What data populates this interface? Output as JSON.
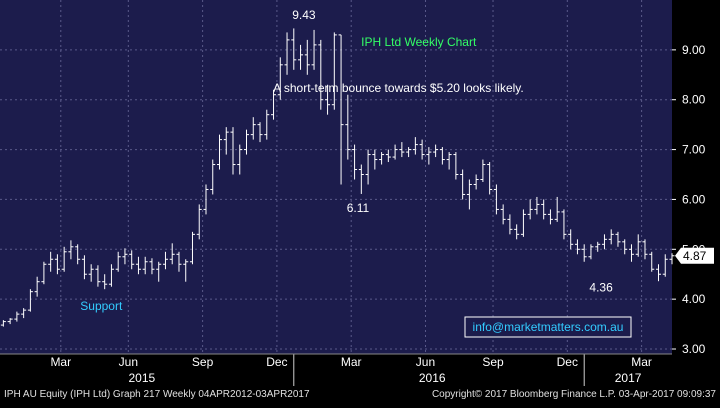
{
  "footer": {
    "left": "IPH AU Equity (IPH Ltd) Graph 217  Weekly 04APR2012-03APR2017",
    "right": "Copyright© 2017 Bloomberg Finance L.P.        03-Apr-2017 09:09:37"
  },
  "colors": {
    "plot_bg": "#1c1c4c",
    "grid": "#5a5a8a",
    "bar": "#ffffff",
    "annotation_green": "#33ff66",
    "annotation_white": "#ffffff",
    "support_cyan": "#33ccff",
    "axis_text": "#ffffff",
    "price_tag_bg": "#ffffff",
    "price_tag_text": "#000000"
  },
  "chart_data": {
    "type": "ohlc",
    "title": "IPH Ltd Weekly Chart",
    "annotations": [
      {
        "text": "IPH Ltd Weekly Chart",
        "color": "green",
        "at_week": 62,
        "at_price": 9.08
      },
      {
        "text": "A short-term bounce towards $5.20 looks likely.",
        "color": "white",
        "at_week": 59,
        "at_price": 8.15
      },
      {
        "text": "9.43",
        "color": "white",
        "at_week": 45,
        "at_price": 9.62
      },
      {
        "text": "6.11",
        "color": "white",
        "at_week": 53,
        "at_price": 5.75
      },
      {
        "text": "4.36",
        "color": "white",
        "at_week": 89,
        "at_price": 4.15
      },
      {
        "text": "Support",
        "color": "cyan",
        "at_week": 15,
        "at_price": 3.78
      }
    ],
    "contact_box": "info@marketmatters.com.au",
    "last_price_label": "4.87",
    "ylim": [
      2.9,
      10.0
    ],
    "xlim": [
      0,
      99.5
    ],
    "y_ticks": [
      {
        "value": 3.0,
        "label": "3.00"
      },
      {
        "value": 4.0,
        "label": "4.00"
      },
      {
        "value": 5.0,
        "label": "5.00"
      },
      {
        "value": 6.0,
        "label": "6.00"
      },
      {
        "value": 7.0,
        "label": "7.00"
      },
      {
        "value": 8.0,
        "label": "8.00"
      },
      {
        "value": 9.0,
        "label": "9.00"
      }
    ],
    "x_month_ticks": [
      {
        "label": "Mar",
        "at_week": 9
      },
      {
        "label": "Jun",
        "at_week": 19
      },
      {
        "label": "Sep",
        "at_week": 30
      },
      {
        "label": "Dec",
        "at_week": 41
      },
      {
        "label": "Mar",
        "at_week": 52
      },
      {
        "label": "Jun",
        "at_week": 63
      },
      {
        "label": "Sep",
        "at_week": 73
      },
      {
        "label": "Dec",
        "at_week": 84
      },
      {
        "label": "Mar",
        "at_week": 95
      }
    ],
    "x_year_labels": [
      {
        "label": "2015",
        "at_week": 21
      },
      {
        "label": "2016",
        "at_week": 64
      },
      {
        "label": "2017",
        "at_week": 93
      }
    ],
    "x_year_dividers_at_week": [
      43.5,
      86.5
    ],
    "grid": true,
    "series": [
      {
        "ohlc": [
          [
            3.48,
            3.58,
            3.45,
            3.55
          ],
          [
            3.55,
            3.62,
            3.5,
            3.6
          ],
          [
            3.6,
            3.75,
            3.55,
            3.7
          ],
          [
            3.7,
            3.82,
            3.62,
            3.78
          ],
          [
            3.78,
            4.2,
            3.75,
            4.15
          ],
          [
            4.15,
            4.45,
            4.05,
            4.35
          ],
          [
            4.35,
            4.75,
            4.3,
            4.7
          ],
          [
            4.7,
            4.95,
            4.55,
            4.8
          ],
          [
            4.8,
            4.9,
            4.5,
            4.6
          ],
          [
            4.6,
            5.05,
            4.55,
            4.95
          ],
          [
            4.95,
            5.18,
            4.8,
            5.05
          ],
          [
            5.05,
            5.1,
            4.7,
            4.8
          ],
          [
            4.8,
            4.88,
            4.4,
            4.5
          ],
          [
            4.5,
            4.7,
            4.35,
            4.6
          ],
          [
            4.6,
            4.68,
            4.25,
            4.35
          ],
          [
            4.35,
            4.5,
            4.2,
            4.3
          ],
          [
            4.3,
            4.7,
            4.25,
            4.6
          ],
          [
            4.6,
            4.95,
            4.55,
            4.85
          ],
          [
            4.85,
            5.02,
            4.7,
            4.9
          ],
          [
            4.9,
            4.98,
            4.6,
            4.7
          ],
          [
            4.7,
            4.85,
            4.5,
            4.6
          ],
          [
            4.6,
            4.85,
            4.5,
            4.75
          ],
          [
            4.75,
            4.82,
            4.5,
            4.6
          ],
          [
            4.6,
            4.75,
            4.35,
            4.7
          ],
          [
            4.7,
            4.95,
            4.6,
            4.8
          ],
          [
            4.8,
            5.12,
            4.7,
            4.9
          ],
          [
            4.9,
            4.95,
            4.55,
            4.7
          ],
          [
            4.7,
            4.8,
            4.35,
            4.75
          ],
          [
            4.75,
            5.35,
            4.7,
            5.3
          ],
          [
            5.3,
            5.9,
            5.2,
            5.8
          ],
          [
            5.8,
            6.3,
            5.7,
            6.2
          ],
          [
            6.2,
            6.8,
            6.1,
            6.7
          ],
          [
            6.7,
            7.3,
            6.6,
            7.2
          ],
          [
            7.2,
            7.45,
            6.9,
            7.35
          ],
          [
            7.35,
            7.45,
            6.5,
            6.7
          ],
          [
            6.7,
            7.1,
            6.5,
            7.0
          ],
          [
            7.0,
            7.4,
            6.9,
            7.3
          ],
          [
            7.3,
            7.65,
            7.2,
            7.5
          ],
          [
            7.5,
            7.55,
            7.15,
            7.3
          ],
          [
            7.3,
            7.8,
            7.2,
            7.7
          ],
          [
            7.7,
            8.2,
            7.6,
            8.1
          ],
          [
            8.1,
            8.85,
            8.0,
            8.7
          ],
          [
            8.7,
            9.35,
            8.5,
            9.2
          ],
          [
            9.2,
            9.43,
            8.6,
            8.8
          ],
          [
            8.8,
            9.1,
            8.6,
            8.9
          ],
          [
            8.9,
            9.2,
            8.5,
            8.7
          ],
          [
            8.7,
            9.4,
            8.6,
            9.1
          ],
          [
            9.1,
            9.2,
            7.8,
            8.0
          ],
          [
            8.0,
            8.3,
            7.7,
            7.9
          ],
          [
            7.9,
            9.35,
            7.8,
            9.3
          ],
          [
            9.3,
            9.3,
            6.3,
            7.5
          ],
          [
            7.5,
            8.1,
            6.8,
            7.0
          ],
          [
            7.0,
            7.1,
            6.4,
            6.6
          ],
          [
            6.6,
            6.7,
            6.11,
            6.5
          ],
          [
            6.5,
            7.0,
            6.3,
            6.9
          ],
          [
            6.9,
            7.0,
            6.6,
            6.8
          ],
          [
            6.8,
            6.95,
            6.7,
            6.9
          ],
          [
            6.9,
            7.0,
            6.75,
            6.85
          ],
          [
            6.85,
            7.1,
            6.8,
            7.0
          ],
          [
            7.0,
            7.15,
            6.85,
            6.95
          ],
          [
            6.95,
            7.05,
            6.85,
            7.0
          ],
          [
            7.0,
            7.25,
            6.9,
            7.1
          ],
          [
            7.1,
            7.2,
            6.8,
            6.9
          ],
          [
            6.9,
            7.05,
            6.7,
            6.95
          ],
          [
            6.95,
            7.1,
            6.85,
            7.0
          ],
          [
            7.0,
            7.05,
            6.7,
            6.8
          ],
          [
            6.8,
            6.95,
            6.6,
            6.9
          ],
          [
            6.9,
            6.95,
            6.4,
            6.5
          ],
          [
            6.5,
            6.6,
            6.0,
            6.1
          ],
          [
            6.1,
            6.4,
            5.8,
            6.3
          ],
          [
            6.3,
            6.5,
            6.2,
            6.4
          ],
          [
            6.4,
            6.8,
            6.35,
            6.7
          ],
          [
            6.7,
            6.75,
            6.1,
            6.2
          ],
          [
            6.2,
            6.3,
            5.7,
            5.8
          ],
          [
            5.8,
            5.9,
            5.5,
            5.6
          ],
          [
            5.6,
            5.7,
            5.3,
            5.4
          ],
          [
            5.4,
            5.5,
            5.2,
            5.3
          ],
          [
            5.3,
            5.8,
            5.25,
            5.7
          ],
          [
            5.7,
            6.0,
            5.6,
            5.8
          ],
          [
            5.8,
            6.05,
            5.7,
            5.9
          ],
          [
            5.9,
            6.0,
            5.6,
            5.7
          ],
          [
            5.7,
            5.8,
            5.5,
            5.6
          ],
          [
            5.6,
            6.05,
            5.55,
            5.75
          ],
          [
            5.75,
            5.8,
            5.2,
            5.3
          ],
          [
            5.3,
            5.4,
            5.0,
            5.1
          ],
          [
            5.1,
            5.2,
            4.9,
            5.0
          ],
          [
            5.0,
            5.1,
            4.75,
            4.85
          ],
          [
            4.85,
            5.1,
            4.8,
            5.05
          ],
          [
            5.05,
            5.15,
            4.95,
            5.1
          ],
          [
            5.1,
            5.3,
            5.0,
            5.2
          ],
          [
            5.2,
            5.4,
            5.1,
            5.3
          ],
          [
            5.3,
            5.35,
            5.05,
            5.15
          ],
          [
            5.15,
            5.2,
            4.9,
            5.0
          ],
          [
            5.0,
            5.1,
            4.75,
            4.9
          ],
          [
            4.9,
            5.3,
            4.85,
            5.15
          ],
          [
            5.15,
            5.2,
            4.8,
            4.9
          ],
          [
            4.9,
            4.95,
            4.55,
            4.6
          ],
          [
            4.6,
            4.7,
            4.36,
            4.5
          ],
          [
            4.5,
            4.9,
            4.45,
            4.8
          ],
          [
            4.8,
            4.92,
            4.7,
            4.87
          ]
        ]
      }
    ]
  }
}
